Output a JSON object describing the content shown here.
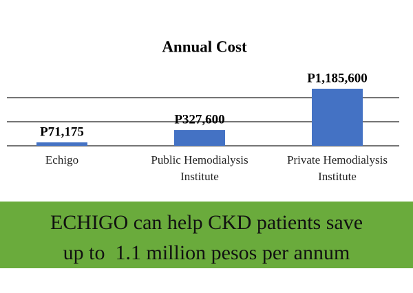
{
  "chart_data": {
    "type": "bar",
    "title": "Annual Cost",
    "categories": [
      "Echigo",
      "Public Hemodialysis Institute",
      "Private Hemodialysis Institute"
    ],
    "values": [
      71175,
      327600,
      1185600
    ],
    "value_labels": [
      "P71,175",
      "P327,600",
      "P1,185,600"
    ],
    "color": "#4472c4",
    "ylim": [
      0,
      1200000
    ],
    "yticks": [
      0,
      500000,
      1000000
    ],
    "grid": true
  },
  "banner": {
    "lines": [
      "ECHIGO can help CKD patients save",
      "up to  1.1 million pesos per annum"
    ],
    "color": "#6aab3c"
  }
}
